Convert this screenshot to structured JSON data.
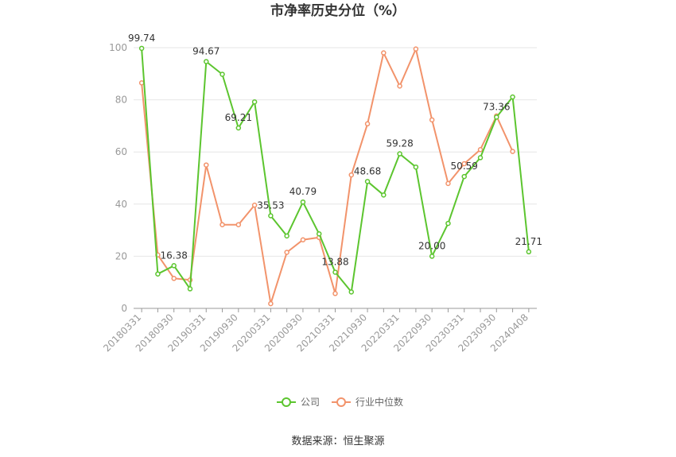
{
  "chart_data": {
    "type": "line",
    "title": "市净率历史分位（%）",
    "xlabel": "",
    "ylabel": "",
    "ylim": [
      0,
      100
    ],
    "yticks": [
      "0",
      "20",
      "40",
      "60",
      "80",
      "100"
    ],
    "x": [
      "20180331",
      "20180630",
      "20180930",
      "20181231",
      "20190331",
      "20190630",
      "20190930",
      "20191231",
      "20200331",
      "20200630",
      "20200930",
      "20201231",
      "20210331",
      "20210630",
      "20210930",
      "20211231",
      "20220331",
      "20220630",
      "20220930",
      "20221231",
      "20230331",
      "20230630",
      "20230930",
      "20231231",
      "20240408"
    ],
    "x_tick_labels": [
      "20180331",
      "20180930",
      "20190331",
      "20190930",
      "20200331",
      "20200930",
      "20210331",
      "20210930",
      "20220331",
      "20220930",
      "20230331",
      "20230930",
      "20240408"
    ],
    "series": [
      {
        "name": "公司",
        "color": "#5cc52f",
        "values": [
          99.74,
          13.2,
          16.38,
          7.5,
          94.67,
          89.8,
          69.21,
          79.2,
          35.53,
          27.8,
          40.79,
          28.6,
          13.88,
          6.3,
          48.68,
          43.5,
          59.28,
          54.2,
          20.0,
          32.6,
          50.59,
          57.8,
          73.36,
          81.1,
          21.71
        ],
        "data_labels": {
          "0": "99.74",
          "2": "16.38",
          "4": "94.67",
          "6": "69.21",
          "8": "35.53",
          "10": "40.79",
          "12": "13.88",
          "14": "48.68",
          "16": "59.28",
          "18": "20.00",
          "20": "50.59",
          "22": "73.36",
          "24": "21.71"
        }
      },
      {
        "name": "行业中位数",
        "color": "#f2936b",
        "values": [
          86.5,
          20.5,
          11.5,
          10.9,
          55.0,
          32.1,
          32.1,
          39.6,
          1.8,
          21.5,
          26.3,
          27.2,
          5.7,
          51.2,
          70.8,
          98.0,
          85.3,
          99.5,
          72.3,
          47.9,
          55.5,
          60.9,
          73.8,
          60.2,
          null
        ]
      }
    ],
    "grid": true,
    "legend": "bottom"
  },
  "source": "数据来源：恒生聚源"
}
